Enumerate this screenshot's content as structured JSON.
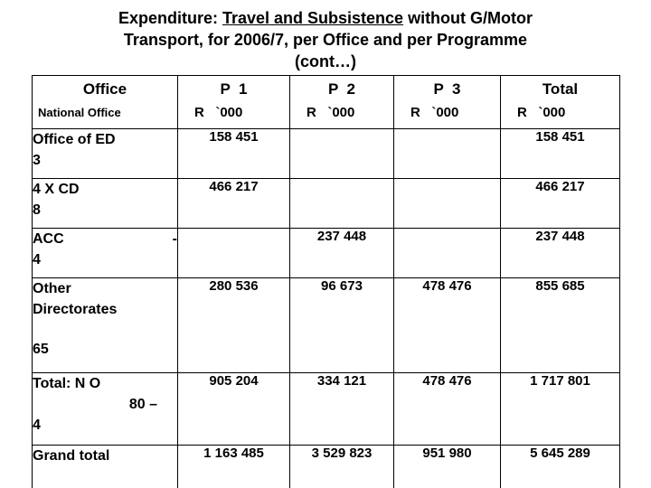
{
  "slide": {
    "title": {
      "l1_pre": "Expenditure: ",
      "l1_underlined": "Travel and Subsistence",
      "l1_post": " without G/Motor",
      "l2": "Transport, for 2006/7, per Office and per Programme",
      "l3": "(cont…)"
    }
  },
  "table": {
    "header": {
      "office": "Office",
      "office_sub": "National Office",
      "p1": "P  1",
      "p2": "P  2",
      "p3": "P  3",
      "total": "Total",
      "unit": "R   `000"
    },
    "rows": [
      {
        "l1": "Office of ED",
        "l2": "3",
        "p1": "158 451",
        "p2": "",
        "p3": "",
        "total": "158 451"
      },
      {
        "l1": "4 X CD",
        "l2": "8",
        "p1": "466 217",
        "p2": "",
        "p3": "",
        "total": "466 217"
      },
      {
        "l1": "ACC",
        "l1_right": "-",
        "l2": "4",
        "p1": "",
        "p2": "237 448",
        "p3": "",
        "total": "237 448"
      },
      {
        "l1": "Other",
        "l2": "Directorates",
        "l3": "65",
        "p1": "280 536",
        "p2": "96 673",
        "p3": "478 476",
        "total": "855 685"
      },
      {
        "l1": "Total: N O",
        "l2_right": "80 –",
        "l3": "4",
        "p1": "905 204",
        "p2": "334 121",
        "p3": "478 476",
        "total": "1 717 801"
      },
      {
        "l1": "Grand total",
        "p1": "1 163 485",
        "p2": "3 529 823",
        "p3": "951 980",
        "total": "5 645 289"
      }
    ]
  }
}
